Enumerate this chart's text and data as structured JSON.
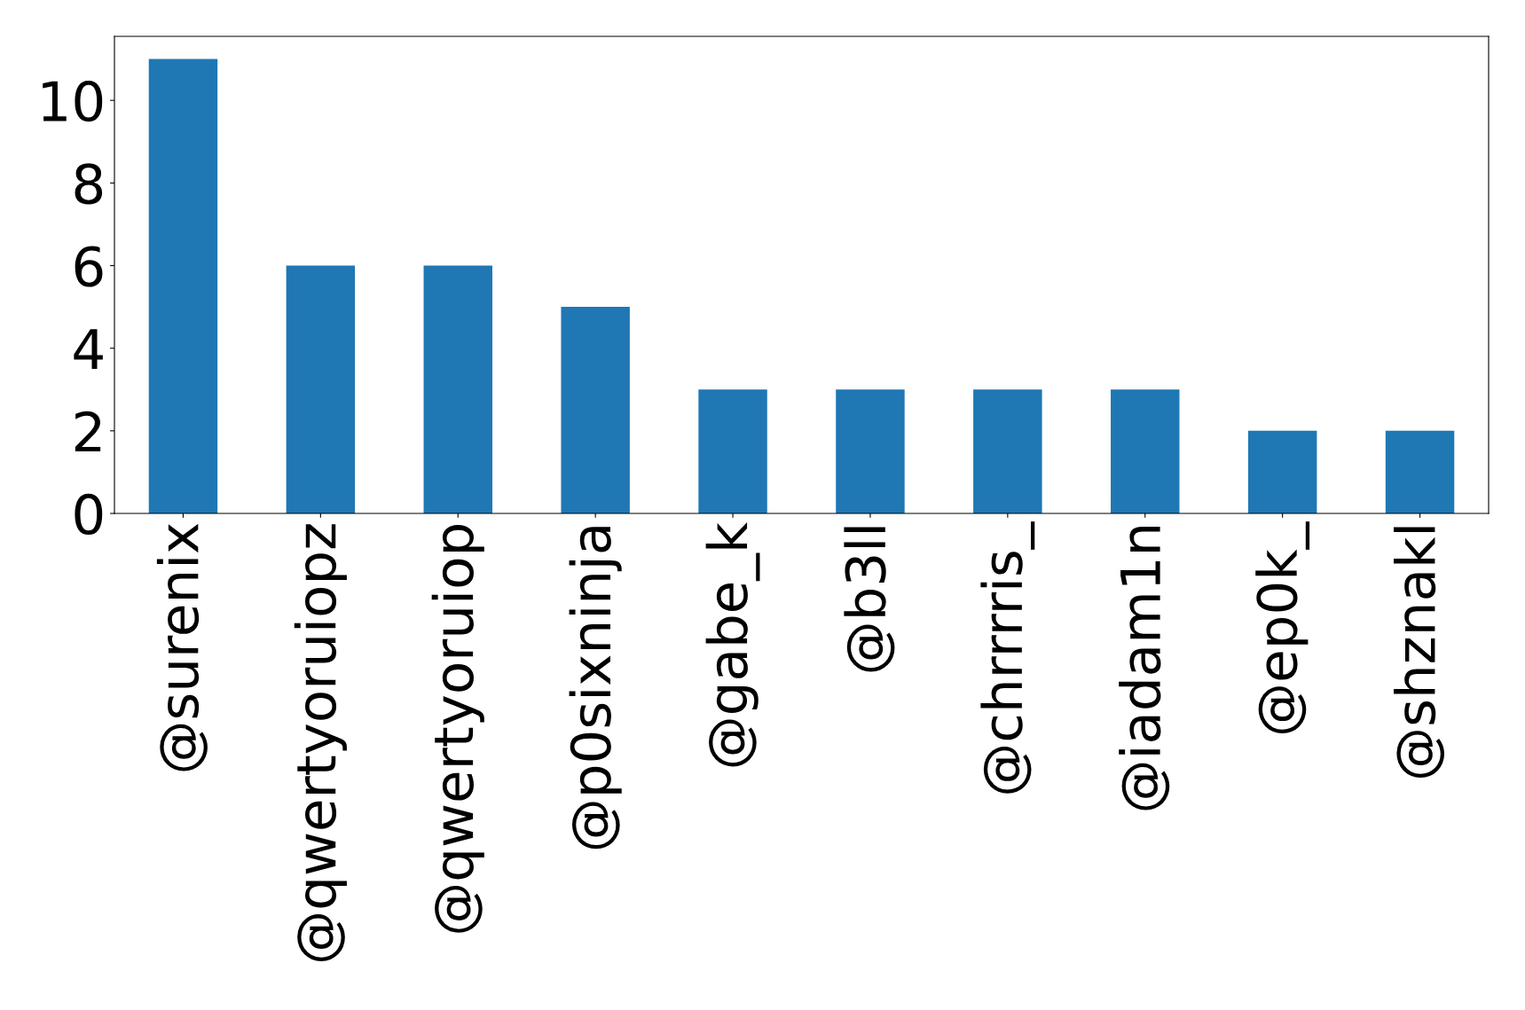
{
  "chart_data": {
    "type": "bar",
    "categories": [
      "@surenix",
      "@qwertyoruiopz",
      "@qwertyoruiop",
      "@p0sixninja",
      "@gabe_k",
      "@b3ll",
      "@chrrrris_",
      "@iadam1n",
      "@ep0k_",
      "@shznakl"
    ],
    "values": [
      11,
      6,
      6,
      5,
      3,
      3,
      3,
      3,
      2,
      2
    ],
    "color": "#1f77b4",
    "ylim": [
      0,
      11.55
    ],
    "yticks": [
      0,
      2,
      4,
      6,
      8,
      10
    ],
    "grid": false,
    "legend": false
  }
}
